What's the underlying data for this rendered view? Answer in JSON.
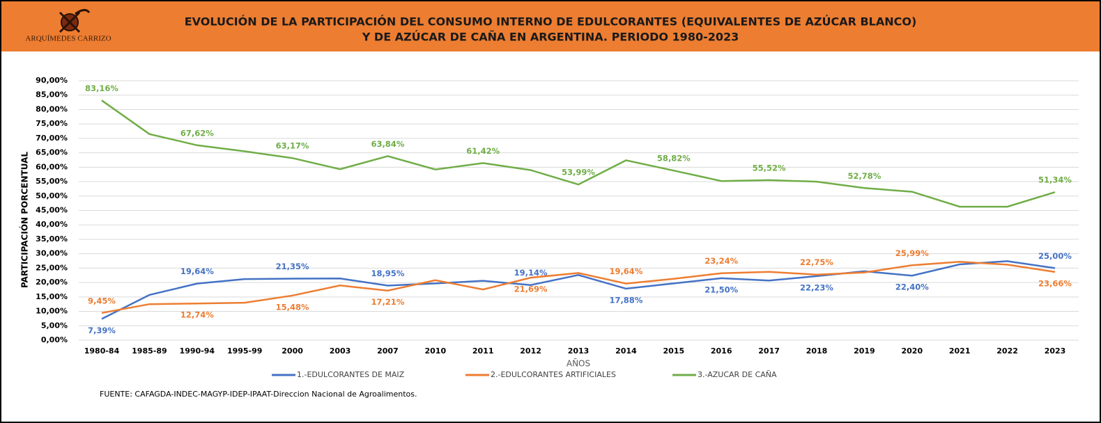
{
  "header": {
    "logo": "ARQUÍMEDES CARRIZO"
  },
  "chart_data": {
    "type": "line",
    "title": [
      "EVOLUCIÓN  DE LA PARTICIPACIÓN DEL CONSUMO INTERNO DE EDULCORANTES (EQUIVALENTES DE AZÚCAR BLANCO)",
      "Y DE AZÚCAR DE CAÑA EN ARGENTINA.  PERIODO 1980-2023"
    ],
    "x_label": "AÑOS",
    "y_label": "PARTICIPACIÓN PORCENTUAL",
    "categories": [
      "1980-84",
      "1985-89",
      "1990-94",
      "1995-99",
      "2000",
      "2003",
      "2007",
      "2010",
      "2011",
      "2012",
      "2013",
      "2014",
      "2015",
      "2016",
      "2017",
      "2018",
      "2019",
      "2020",
      "2021",
      "2022",
      "2023"
    ],
    "series": [
      {
        "name": "1.-EDULCORANTES DE MAIZ",
        "color": "#4472c4",
        "values": [
          7.39,
          15.7,
          19.64,
          21.2,
          21.35,
          21.4,
          18.95,
          19.7,
          20.6,
          19.14,
          22.6,
          17.88,
          19.7,
          21.5,
          20.7,
          22.23,
          23.9,
          22.4,
          26.3,
          27.4,
          25.0
        ],
        "value_labels": [
          "7,39%",
          null,
          "19,64%",
          null,
          "21,35%",
          null,
          "18,95%",
          null,
          null,
          "19,14%",
          null,
          "17,88%",
          null,
          "21,50%",
          null,
          "22,23%",
          null,
          "22,40%",
          null,
          null,
          "25,00%"
        ]
      },
      {
        "name": "2.-EDULCORANTES ARTIFICIALES",
        "color": "#ed7d31",
        "values": [
          9.45,
          12.5,
          12.74,
          13.0,
          15.48,
          19.0,
          17.21,
          20.8,
          17.6,
          21.69,
          23.3,
          19.64,
          21.3,
          23.24,
          23.7,
          22.75,
          23.5,
          25.99,
          27.2,
          26.2,
          23.66
        ],
        "value_labels": [
          "9,45%",
          null,
          "12,74%",
          null,
          "15,48%",
          null,
          "17,21%",
          null,
          null,
          "21,69%",
          null,
          "19,64%",
          null,
          "23,24%",
          null,
          "22,75%",
          null,
          "25,99%",
          null,
          null,
          "23,66%"
        ]
      },
      {
        "name": "3.-AZUCAR DE CAÑA",
        "color": "#70ad47",
        "values": [
          83.16,
          71.5,
          67.62,
          65.5,
          63.17,
          59.3,
          63.84,
          59.2,
          61.42,
          59.0,
          53.99,
          62.4,
          58.82,
          55.2,
          55.52,
          55.0,
          52.78,
          51.5,
          46.3,
          46.3,
          51.34
        ],
        "value_labels": [
          "83,16%",
          null,
          "67,62%",
          null,
          "63,17%",
          null,
          "63,84%",
          null,
          "61,42%",
          null,
          "53,99%",
          null,
          "58,82%",
          null,
          "55,52%",
          null,
          "52,78%",
          null,
          null,
          null,
          "51,34%"
        ]
      }
    ],
    "ylim": [
      0,
      90
    ],
    "yticks": [
      {
        "value": 0,
        "label": "0,00%"
      },
      {
        "value": 5,
        "label": "5,00%"
      },
      {
        "value": 10,
        "label": "10,00%"
      },
      {
        "value": 15,
        "label": "15,00%"
      },
      {
        "value": 20,
        "label": "20,00%"
      },
      {
        "value": 25,
        "label": "25,00%"
      },
      {
        "value": 30,
        "label": "30,00%"
      },
      {
        "value": 35,
        "label": "35,00%"
      },
      {
        "value": 40,
        "label": "40,00%"
      },
      {
        "value": 45,
        "label": "45,00%"
      },
      {
        "value": 50,
        "label": "50,00%"
      },
      {
        "value": 55,
        "label": "55,00%"
      },
      {
        "value": 60,
        "label": "60,00%"
      },
      {
        "value": 65,
        "label": "65,00%"
      },
      {
        "value": 70,
        "label": "70,00%"
      },
      {
        "value": 75,
        "label": "75,00%"
      },
      {
        "value": 80,
        "label": "80,00%"
      },
      {
        "value": 85,
        "label": "85,00%"
      },
      {
        "value": 90,
        "label": "90,00%"
      }
    ],
    "grid": true,
    "legend": "bottom",
    "source": "FUENTE: CAFAGDA-INDEC-MAGYP-IDEP-IPAAT-Direccion Nacional de Agroalimentos."
  }
}
